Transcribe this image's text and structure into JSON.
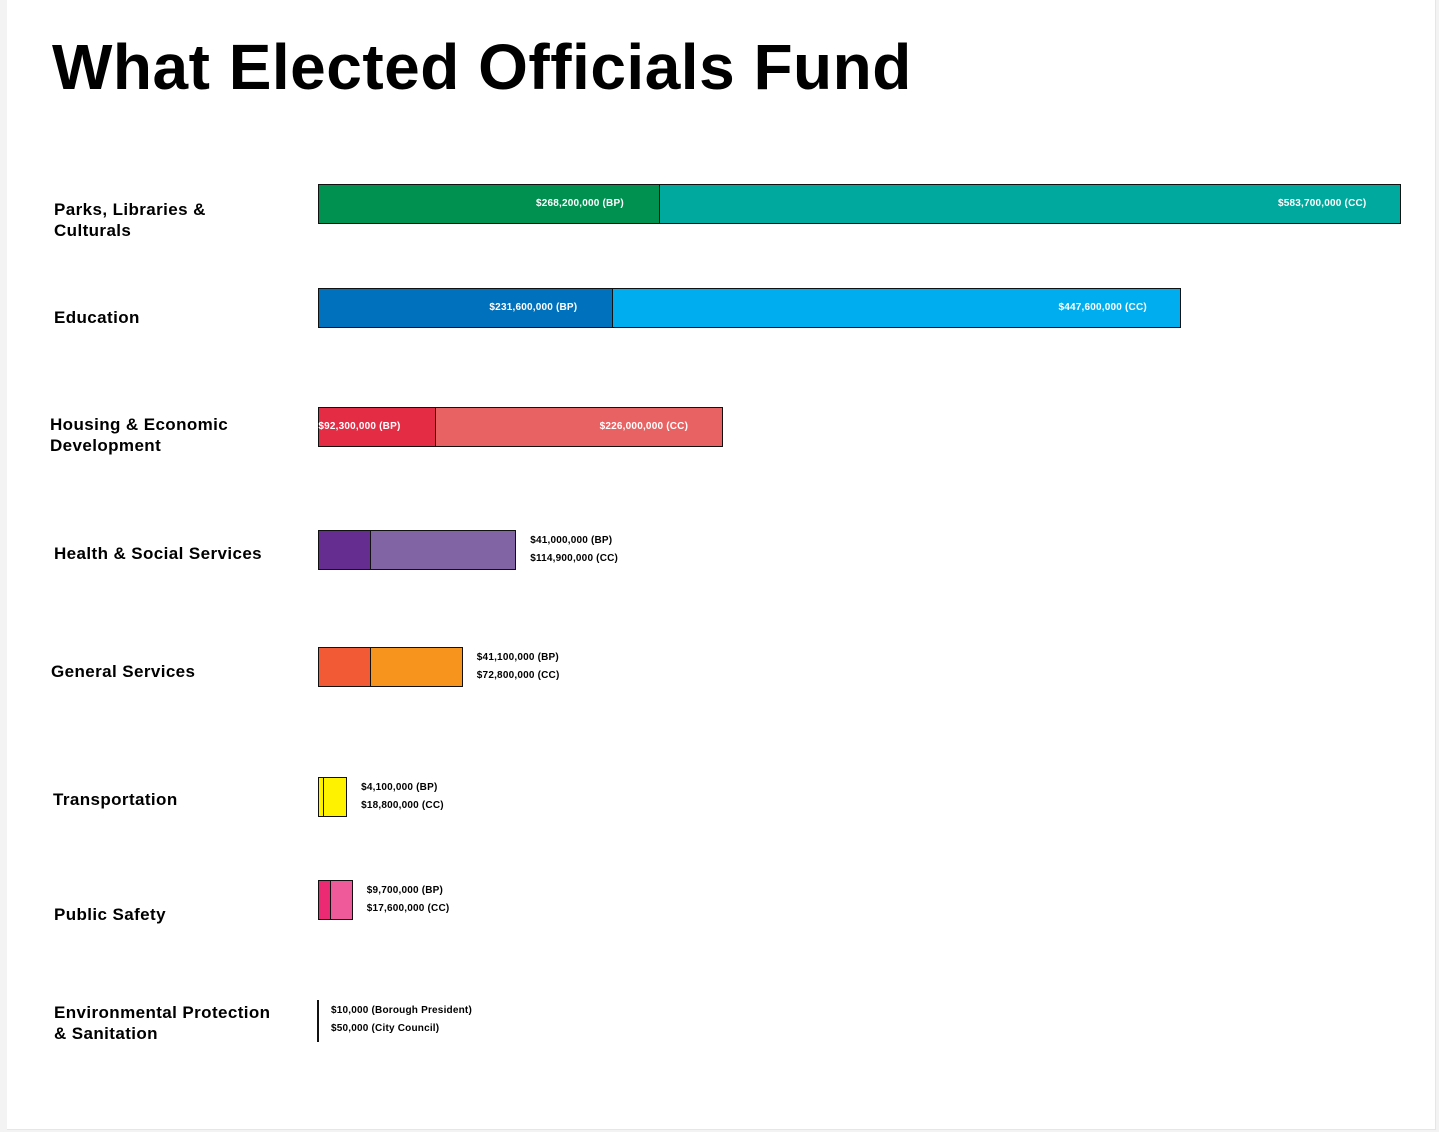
{
  "chart_data": {
    "type": "bar",
    "orientation": "horizontal",
    "stacked": true,
    "title": "What Elected Officials Fund",
    "xlabel": "",
    "ylabel": "",
    "grid": false,
    "legend": "none",
    "categories": [
      "Parks, Libraries &\nCulturals",
      "Education",
      "Housing & Economic\nDevelopment",
      "Health & Social Services",
      "General Services",
      "Transportation",
      "Public Safety",
      "Environmental Protection\n& Sanitation"
    ],
    "series": [
      {
        "values": [
          268200000,
          231600000,
          92300000,
          41000000,
          41100000,
          4100000,
          9700000,
          10000
        ]
      },
      {
        "values": [
          583700000,
          447600000,
          226000000,
          114900000,
          72800000,
          18800000,
          17600000,
          50000
        ]
      }
    ],
    "value_labels": [
      [
        "$268,200,000  (BP)",
        "$583,700,000 (CC)"
      ],
      [
        "$231,600,000 (BP)",
        "$447,600,000 (CC)"
      ],
      [
        "$92,300,000 (BP)",
        "$226,000,000 (CC)"
      ],
      [
        "$41,000,000 (BP)",
        "$114,900,000 (CC)"
      ],
      [
        "$41,100,000 (BP)",
        "$72,800,000 (CC)"
      ],
      [
        "$4,100,000 (BP)",
        "$18,800,000 (CC)"
      ],
      [
        "$9,700,000 (BP)",
        "$17,600,000 (CC)"
      ],
      [
        "$10,000 (Borough President)",
        "$50,000 (City Council)"
      ]
    ],
    "label_position": [
      "inside",
      "inside",
      "inside",
      "outside",
      "outside",
      "outside",
      "outside",
      "outside"
    ],
    "colors": [
      [
        "#009150",
        "#00a99d"
      ],
      [
        "#0071bc",
        "#00aeef"
      ],
      [
        "#e42c45",
        "#e86263"
      ],
      [
        "#662d91",
        "#8164a3"
      ],
      [
        "#f15a35",
        "#f7941d"
      ],
      [
        "#fff200",
        "#fff200"
      ],
      [
        "#ec2a73",
        "#ef5a9b"
      ],
      [
        "#111111",
        "#111111"
      ]
    ]
  }
}
